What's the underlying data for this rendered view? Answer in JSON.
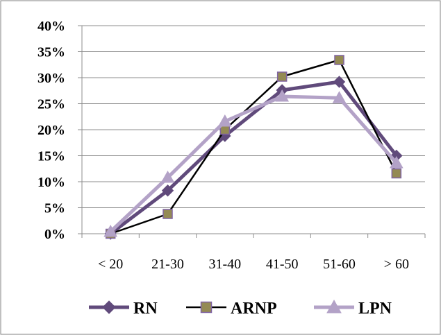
{
  "chart_data": {
    "type": "line",
    "categories": [
      "< 20",
      "21-30",
      "31-40",
      "41-50",
      "51-60",
      "> 60"
    ],
    "y_ticks": [
      "0%",
      "5%",
      "10%",
      "15%",
      "20%",
      "25%",
      "30%",
      "35%",
      "40%"
    ],
    "ylim": [
      0,
      40
    ],
    "grid": true,
    "legend_position": "bottom",
    "series": [
      {
        "name": "RN",
        "values": [
          0,
          8.3,
          18.8,
          27.6,
          29.2,
          15.0
        ],
        "color": "#604a7b",
        "marker": "diamond"
      },
      {
        "name": "ARNP",
        "values": [
          0,
          3.8,
          20.0,
          30.2,
          33.4,
          11.6
        ],
        "color": "#000000",
        "marker": "square",
        "marker_fill": "#948a54",
        "marker_stroke": "#8064a2"
      },
      {
        "name": "LPN",
        "values": [
          0.4,
          10.8,
          21.6,
          26.4,
          26.1,
          13.6
        ],
        "color": "#b3a2c7",
        "marker": "triangle"
      }
    ]
  }
}
